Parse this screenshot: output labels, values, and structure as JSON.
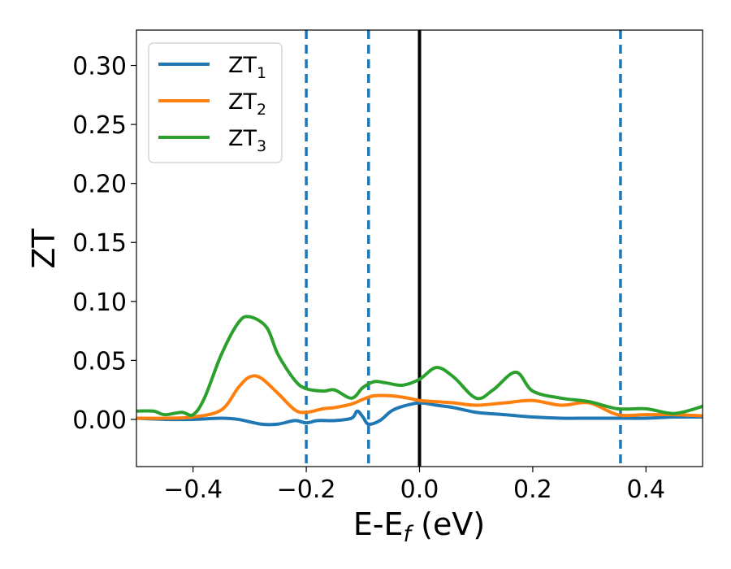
{
  "chart_data": {
    "type": "line",
    "title": "",
    "xlabel": {
      "base": "E-E",
      "sub": "f",
      "tail": " (eV)"
    },
    "ylabel": "ZT",
    "xlim": [
      -0.5,
      0.5
    ],
    "ylim": [
      -0.04,
      0.33
    ],
    "xticks": [
      -0.4,
      -0.2,
      0.0,
      0.2,
      0.4
    ],
    "xtick_labels": [
      "−0.4",
      "−0.2",
      "0.0",
      "0.2",
      "0.4"
    ],
    "yticks": [
      0.0,
      0.05,
      0.1,
      0.15,
      0.2,
      0.25,
      0.3
    ],
    "ytick_labels": [
      "0.00",
      "0.05",
      "0.10",
      "0.15",
      "0.20",
      "0.25",
      "0.30"
    ],
    "grid": false,
    "legend_position": "upper-left",
    "series": [
      {
        "name": "ZT",
        "name_sub": "1",
        "color": "#1f77b4",
        "x": [
          -0.5,
          -0.45,
          -0.4,
          -0.35,
          -0.32,
          -0.28,
          -0.25,
          -0.22,
          -0.2,
          -0.18,
          -0.15,
          -0.12,
          -0.11,
          -0.1,
          -0.09,
          -0.07,
          -0.05,
          -0.03,
          0.0,
          0.03,
          0.06,
          0.1,
          0.15,
          0.2,
          0.25,
          0.3,
          0.35,
          0.4,
          0.45,
          0.5
        ],
        "y": [
          0.001,
          0.0,
          0.0,
          0.001,
          0.0,
          -0.004,
          -0.004,
          -0.001,
          -0.003,
          -0.001,
          -0.001,
          0.001,
          0.007,
          0.002,
          -0.004,
          -0.001,
          0.007,
          0.011,
          0.014,
          0.012,
          0.01,
          0.006,
          0.004,
          0.002,
          0.001,
          0.001,
          0.001,
          0.001,
          0.002,
          0.002
        ]
      },
      {
        "name": "ZT",
        "name_sub": "2",
        "color": "#ff7f0e",
        "x": [
          -0.5,
          -0.45,
          -0.4,
          -0.35,
          -0.32,
          -0.3,
          -0.28,
          -0.25,
          -0.22,
          -0.2,
          -0.17,
          -0.15,
          -0.12,
          -0.1,
          -0.08,
          -0.05,
          -0.02,
          0.0,
          0.03,
          0.06,
          0.1,
          0.15,
          0.2,
          0.25,
          0.3,
          0.35,
          0.4,
          0.45,
          0.5
        ],
        "y": [
          0.001,
          0.001,
          0.002,
          0.008,
          0.027,
          0.036,
          0.035,
          0.022,
          0.008,
          0.006,
          0.009,
          0.01,
          0.013,
          0.017,
          0.02,
          0.02,
          0.018,
          0.016,
          0.015,
          0.014,
          0.012,
          0.014,
          0.016,
          0.012,
          0.014,
          0.004,
          0.004,
          0.004,
          0.003
        ]
      },
      {
        "name": "ZT",
        "name_sub": "3",
        "color": "#2ca02c",
        "x": [
          -0.5,
          -0.47,
          -0.45,
          -0.42,
          -0.4,
          -0.38,
          -0.35,
          -0.32,
          -0.3,
          -0.27,
          -0.25,
          -0.22,
          -0.2,
          -0.17,
          -0.15,
          -0.12,
          -0.1,
          -0.08,
          -0.06,
          -0.03,
          0.0,
          0.03,
          0.06,
          0.1,
          0.13,
          0.17,
          0.2,
          0.25,
          0.3,
          0.35,
          0.4,
          0.45,
          0.5
        ],
        "y": [
          0.007,
          0.007,
          0.004,
          0.006,
          0.004,
          0.018,
          0.055,
          0.082,
          0.087,
          0.078,
          0.055,
          0.033,
          0.026,
          0.024,
          0.025,
          0.018,
          0.027,
          0.032,
          0.031,
          0.029,
          0.034,
          0.044,
          0.036,
          0.018,
          0.025,
          0.04,
          0.024,
          0.018,
          0.015,
          0.009,
          0.009,
          0.005,
          0.011
        ]
      }
    ],
    "vlines": [
      {
        "x": -0.2,
        "style": "dashed",
        "color": "#1f77b4"
      },
      {
        "x": -0.09,
        "style": "dashed",
        "color": "#1f77b4"
      },
      {
        "x": 0.355,
        "style": "dashed",
        "color": "#1f77b4"
      },
      {
        "x": 0.0,
        "style": "solid",
        "color": "#000000"
      }
    ]
  }
}
